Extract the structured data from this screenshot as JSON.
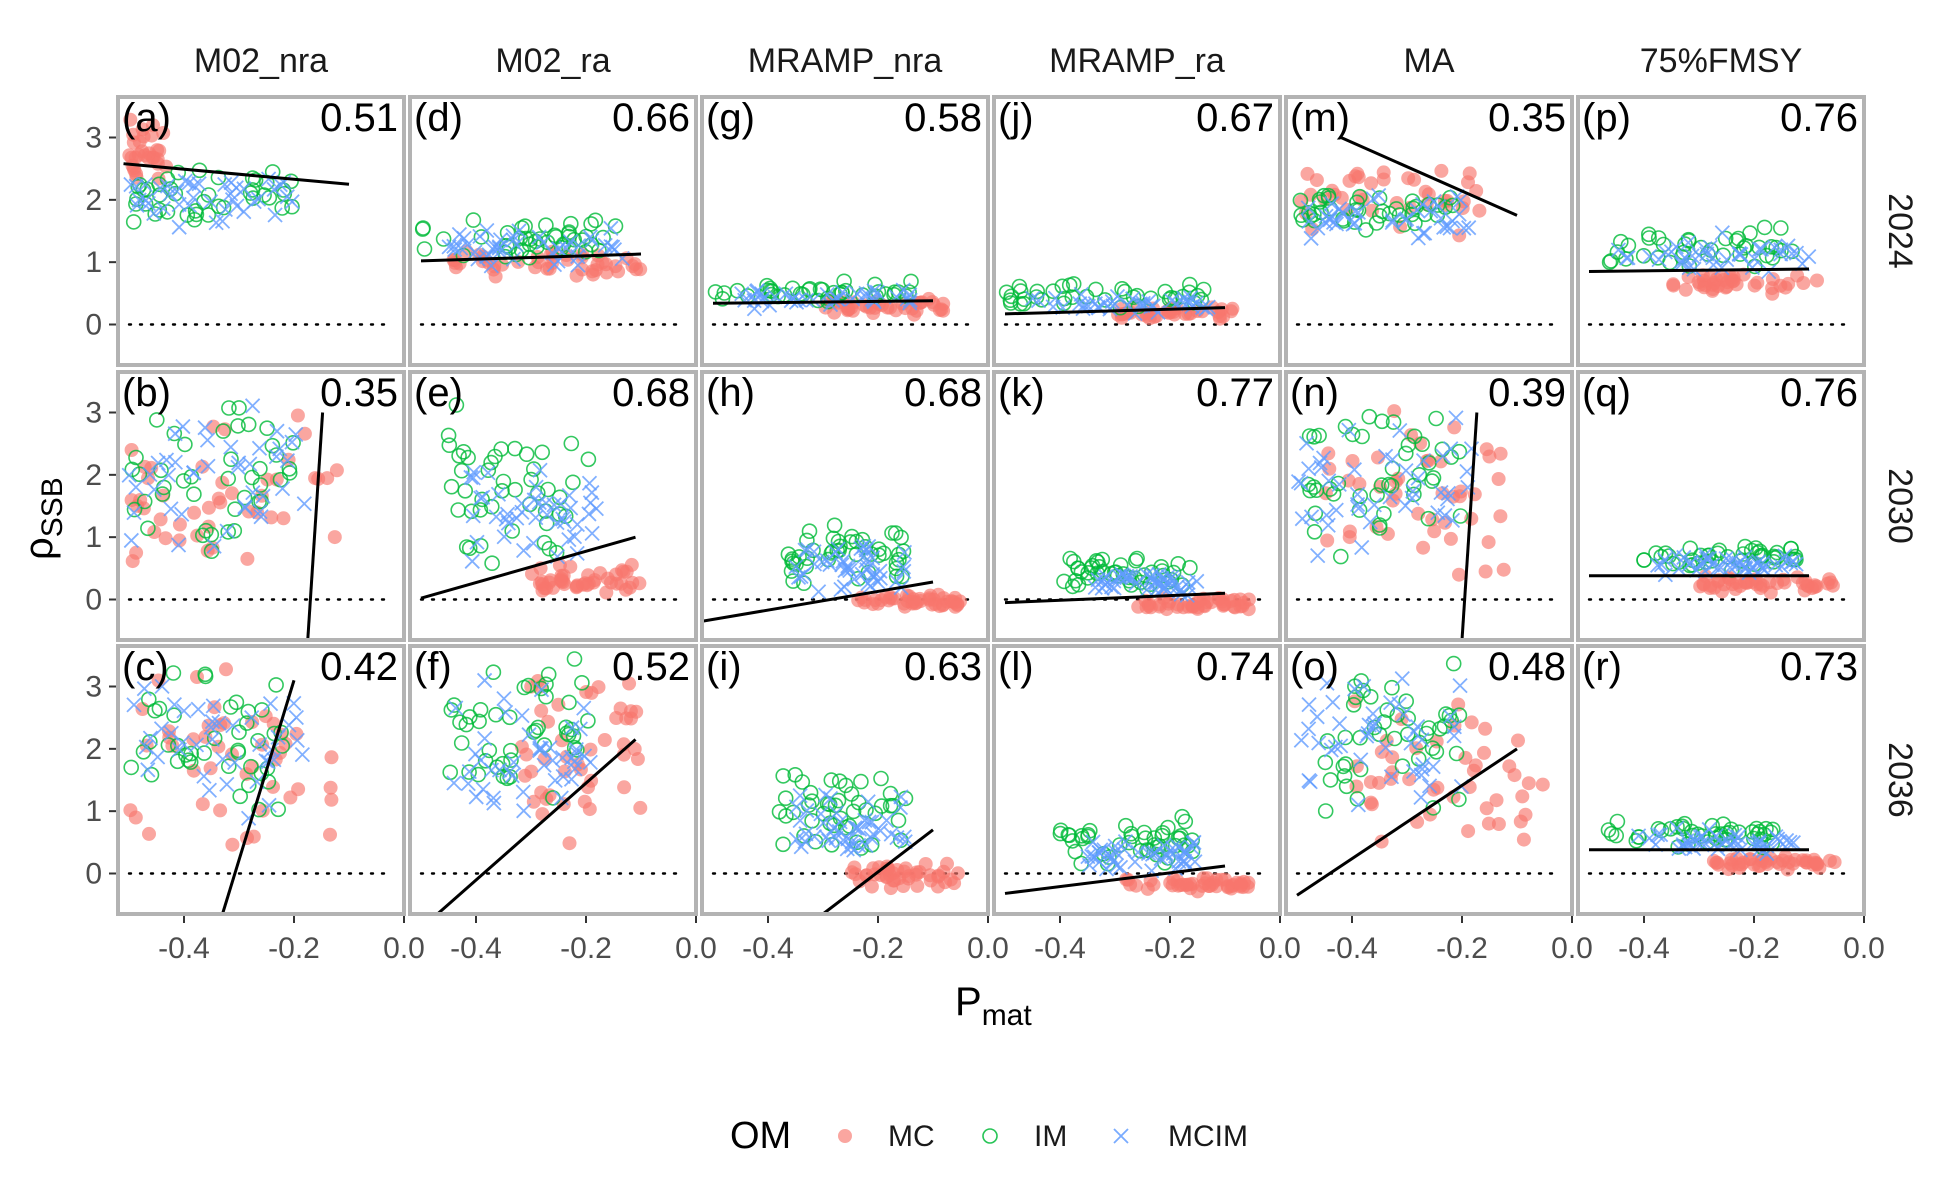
{
  "chart_data": {
    "type": "scatter",
    "xlabel": "P",
    "xlabel_sub": "mat",
    "ylabel": "ρ",
    "ylabel_sub": "SSB",
    "xlim": [
      -0.52,
      0.0
    ],
    "ylim": [
      -0.65,
      3.65
    ],
    "x_ticks": [
      -0.4,
      -0.2,
      0.0
    ],
    "x_tick_labels": [
      "-0.4",
      "-0.2",
      "0.0"
    ],
    "y_ticks": [
      0,
      1,
      2,
      3
    ],
    "y_tick_labels": [
      "0",
      "1",
      "2",
      "3"
    ],
    "reference_line_y": 0,
    "grid": false,
    "legend": {
      "title": "OM",
      "position": "bottom",
      "entries": [
        {
          "label": "MC",
          "marker": "filled-circle",
          "color": "#F8766D"
        },
        {
          "label": "IM",
          "marker": "open-circle",
          "color": "#00BA38"
        },
        {
          "label": "MCIM",
          "marker": "cross",
          "color": "#619CFF"
        }
      ]
    },
    "columns": [
      "M02_nra",
      "M02_ra",
      "MRAMP_nra",
      "MRAMP_ra",
      "MA",
      "75%FMSY"
    ],
    "rows": [
      "2024",
      "2030",
      "2036"
    ],
    "panels": [
      {
        "tag": "(a)",
        "row": 0,
        "col": 0,
        "r": "0.51",
        "fit": [
          [
            -0.51,
            2.58
          ],
          [
            -0.1,
            2.25
          ]
        ],
        "mc": {
          "x": [
            -0.5,
            -0.42
          ],
          "y": [
            2.1,
            3.4
          ],
          "n": 30
        },
        "im": {
          "x": [
            -0.5,
            -0.2
          ],
          "y": [
            1.6,
            2.5
          ],
          "n": 42
        },
        "mcim": {
          "x": [
            -0.5,
            -0.2
          ],
          "y": [
            1.4,
            2.6
          ],
          "n": 42
        }
      },
      {
        "tag": "(b)",
        "row": 1,
        "col": 0,
        "r": "0.35",
        "fit": [
          [
            -0.175,
            -0.65
          ],
          [
            -0.148,
            3.0
          ]
        ],
        "mc": {
          "x": [
            -0.5,
            -0.12
          ],
          "y": [
            0.2,
            3.3
          ],
          "n": 45
        },
        "im": {
          "x": [
            -0.5,
            -0.2
          ],
          "y": [
            0.7,
            3.2
          ],
          "n": 42
        },
        "mcim": {
          "x": [
            -0.5,
            -0.18
          ],
          "y": [
            0.7,
            3.3
          ],
          "n": 42
        }
      },
      {
        "tag": "(c)",
        "row": 2,
        "col": 0,
        "r": "0.42",
        "fit": [
          [
            -0.33,
            -0.65
          ],
          [
            -0.2,
            3.1
          ]
        ],
        "mc": {
          "x": [
            -0.5,
            -0.12
          ],
          "y": [
            0.3,
            3.6
          ],
          "n": 45
        },
        "im": {
          "x": [
            -0.5,
            -0.2
          ],
          "y": [
            0.9,
            3.3
          ],
          "n": 42
        },
        "mcim": {
          "x": [
            -0.5,
            -0.18
          ],
          "y": [
            0.8,
            3.3
          ],
          "n": 42
        }
      },
      {
        "tag": "(d)",
        "row": 0,
        "col": 1,
        "r": "0.66",
        "fit": [
          [
            -0.5,
            1.02
          ],
          [
            -0.1,
            1.13
          ]
        ],
        "mc": {
          "x": [
            -0.45,
            -0.1
          ],
          "y": [
            0.75,
            1.2
          ],
          "n": 45
        },
        "im": {
          "x": [
            -0.5,
            -0.13
          ],
          "y": [
            1.0,
            1.7
          ],
          "n": 45
        },
        "mcim": {
          "x": [
            -0.45,
            -0.13
          ],
          "y": [
            0.9,
            1.6
          ],
          "n": 45
        }
      },
      {
        "tag": "(e)",
        "row": 1,
        "col": 1,
        "r": "0.68",
        "fit": [
          [
            -0.5,
            0.02
          ],
          [
            -0.11,
            1.0
          ]
        ],
        "mc": {
          "x": [
            -0.3,
            -0.1
          ],
          "y": [
            0.05,
            0.6
          ],
          "n": 45
        },
        "im": {
          "x": [
            -0.45,
            -0.18
          ],
          "y": [
            0.5,
            3.2
          ],
          "n": 45
        },
        "mcim": {
          "x": [
            -0.42,
            -0.18
          ],
          "y": [
            0.4,
            2.5
          ],
          "n": 45
        }
      },
      {
        "tag": "(f)",
        "row": 2,
        "col": 1,
        "r": "0.52",
        "fit": [
          [
            -0.47,
            -0.65
          ],
          [
            -0.11,
            2.15
          ]
        ],
        "mc": {
          "x": [
            -0.32,
            -0.1
          ],
          "y": [
            0.3,
            3.6
          ],
          "n": 45
        },
        "im": {
          "x": [
            -0.45,
            -0.18
          ],
          "y": [
            0.9,
            3.5
          ],
          "n": 45
        },
        "mcim": {
          "x": [
            -0.45,
            -0.18
          ],
          "y": [
            0.7,
            3.3
          ],
          "n": 45
        }
      },
      {
        "tag": "(g)",
        "row": 0,
        "col": 2,
        "r": "0.58",
        "fit": [
          [
            -0.5,
            0.34
          ],
          [
            -0.1,
            0.38
          ]
        ],
        "mc": {
          "x": [
            -0.3,
            -0.08
          ],
          "y": [
            0.15,
            0.45
          ],
          "n": 40
        },
        "im": {
          "x": [
            -0.5,
            -0.13
          ],
          "y": [
            0.3,
            0.7
          ],
          "n": 40
        },
        "mcim": {
          "x": [
            -0.45,
            -0.13
          ],
          "y": [
            0.25,
            0.6
          ],
          "n": 40
        }
      },
      {
        "tag": "(h)",
        "row": 1,
        "col": 2,
        "r": "0.68",
        "fit": [
          [
            -0.52,
            -0.35
          ],
          [
            -0.1,
            0.28
          ]
        ],
        "mc": {
          "x": [
            -0.25,
            -0.05
          ],
          "y": [
            -0.15,
            0.1
          ],
          "n": 45
        },
        "im": {
          "x": [
            -0.38,
            -0.15
          ],
          "y": [
            0.2,
            1.2
          ],
          "n": 45
        },
        "mcim": {
          "x": [
            -0.35,
            -0.15
          ],
          "y": [
            0.1,
            1.0
          ],
          "n": 45
        }
      },
      {
        "tag": "(i)",
        "row": 2,
        "col": 2,
        "r": "0.63",
        "fit": [
          [
            -0.3,
            -0.65
          ],
          [
            -0.1,
            0.7
          ]
        ],
        "mc": {
          "x": [
            -0.25,
            -0.05
          ],
          "y": [
            -0.25,
            0.2
          ],
          "n": 45
        },
        "im": {
          "x": [
            -0.38,
            -0.15
          ],
          "y": [
            0.3,
            1.9
          ],
          "n": 45
        },
        "mcim": {
          "x": [
            -0.35,
            -0.15
          ],
          "y": [
            0.1,
            1.3
          ],
          "n": 45
        }
      },
      {
        "tag": "(j)",
        "row": 0,
        "col": 3,
        "r": "0.67",
        "fit": [
          [
            -0.5,
            0.17
          ],
          [
            -0.1,
            0.27
          ]
        ],
        "mc": {
          "x": [
            -0.3,
            -0.08
          ],
          "y": [
            0.05,
            0.3
          ],
          "n": 40
        },
        "im": {
          "x": [
            -0.5,
            -0.13
          ],
          "y": [
            0.2,
            0.7
          ],
          "n": 40
        },
        "mcim": {
          "x": [
            -0.45,
            -0.13
          ],
          "y": [
            0.15,
            0.55
          ],
          "n": 40
        }
      },
      {
        "tag": "(k)",
        "row": 1,
        "col": 3,
        "r": "0.77",
        "fit": [
          [
            -0.5,
            -0.05
          ],
          [
            -0.1,
            0.1
          ]
        ],
        "mc": {
          "x": [
            -0.28,
            -0.05
          ],
          "y": [
            -0.2,
            0.05
          ],
          "n": 45
        },
        "im": {
          "x": [
            -0.4,
            -0.15
          ],
          "y": [
            0.15,
            0.7
          ],
          "n": 45
        },
        "mcim": {
          "x": [
            -0.35,
            -0.15
          ],
          "y": [
            0.05,
            0.5
          ],
          "n": 45
        }
      },
      {
        "tag": "(l)",
        "row": 2,
        "col": 3,
        "r": "0.74",
        "fit": [
          [
            -0.5,
            -0.32
          ],
          [
            -0.1,
            0.12
          ]
        ],
        "mc": {
          "x": [
            -0.28,
            -0.05
          ],
          "y": [
            -0.3,
            -0.05
          ],
          "n": 45
        },
        "im": {
          "x": [
            -0.4,
            -0.15
          ],
          "y": [
            0.1,
            1.0
          ],
          "n": 45
        },
        "mcim": {
          "x": [
            -0.35,
            -0.15
          ],
          "y": [
            0.0,
            0.6
          ],
          "n": 45
        }
      },
      {
        "tag": "(m)",
        "row": 0,
        "col": 4,
        "r": "0.35",
        "fit": [
          [
            -0.42,
            3.0
          ],
          [
            -0.1,
            1.75
          ]
        ],
        "mc": {
          "x": [
            -0.5,
            -0.15
          ],
          "y": [
            1.4,
            2.6
          ],
          "n": 40
        },
        "im": {
          "x": [
            -0.5,
            -0.2
          ],
          "y": [
            1.5,
            2.2
          ],
          "n": 42
        },
        "mcim": {
          "x": [
            -0.48,
            -0.18
          ],
          "y": [
            1.3,
            2.1
          ],
          "n": 42
        }
      },
      {
        "tag": "(n)",
        "row": 1,
        "col": 4,
        "r": "0.39",
        "fit": [
          [
            -0.2,
            -0.65
          ],
          [
            -0.173,
            3.0
          ]
        ],
        "mc": {
          "x": [
            -0.45,
            -0.12
          ],
          "y": [
            0.0,
            3.5
          ],
          "n": 45
        },
        "im": {
          "x": [
            -0.48,
            -0.2
          ],
          "y": [
            0.6,
            3.3
          ],
          "n": 45
        },
        "mcim": {
          "x": [
            -0.5,
            -0.18
          ],
          "y": [
            0.5,
            3.1
          ],
          "n": 45
        }
      },
      {
        "tag": "(o)",
        "row": 2,
        "col": 4,
        "r": "0.48",
        "fit": [
          [
            -0.5,
            -0.35
          ],
          [
            -0.1,
            2.0
          ]
        ],
        "mc": {
          "x": [
            -0.4,
            -0.05
          ],
          "y": [
            0.2,
            3.2
          ],
          "n": 45
        },
        "im": {
          "x": [
            -0.45,
            -0.2
          ],
          "y": [
            0.9,
            3.5
          ],
          "n": 45
        },
        "mcim": {
          "x": [
            -0.5,
            -0.2
          ],
          "y": [
            0.8,
            3.3
          ],
          "n": 45
        }
      },
      {
        "tag": "(p)",
        "row": 0,
        "col": 5,
        "r": "0.76",
        "fit": [
          [
            -0.5,
            0.85
          ],
          [
            -0.1,
            0.89
          ]
        ],
        "mc": {
          "x": [
            -0.35,
            -0.08
          ],
          "y": [
            0.45,
            0.85
          ],
          "n": 40
        },
        "im": {
          "x": [
            -0.48,
            -0.13
          ],
          "y": [
            0.9,
            1.6
          ],
          "n": 40
        },
        "mcim": {
          "x": [
            -0.45,
            -0.1
          ],
          "y": [
            0.8,
            1.5
          ],
          "n": 40
        }
      },
      {
        "tag": "(q)",
        "row": 1,
        "col": 5,
        "r": "0.76",
        "fit": [
          [
            -0.5,
            0.38
          ],
          [
            -0.1,
            0.38
          ]
        ],
        "mc": {
          "x": [
            -0.3,
            -0.05
          ],
          "y": [
            0.1,
            0.4
          ],
          "n": 45
        },
        "im": {
          "x": [
            -0.42,
            -0.12
          ],
          "y": [
            0.45,
            0.9
          ],
          "n": 45
        },
        "mcim": {
          "x": [
            -0.38,
            -0.12
          ],
          "y": [
            0.35,
            0.8
          ],
          "n": 45
        }
      },
      {
        "tag": "(r)",
        "row": 2,
        "col": 5,
        "r": "0.73",
        "fit": [
          [
            -0.5,
            0.38
          ],
          [
            -0.1,
            0.38
          ]
        ],
        "mc": {
          "x": [
            -0.28,
            -0.05
          ],
          "y": [
            0.05,
            0.3
          ],
          "n": 45
        },
        "im": {
          "x": [
            -0.48,
            -0.12
          ],
          "y": [
            0.4,
            0.85
          ],
          "n": 45
        },
        "mcim": {
          "x": [
            -0.42,
            -0.12
          ],
          "y": [
            0.3,
            0.75
          ],
          "n": 45
        }
      }
    ]
  }
}
